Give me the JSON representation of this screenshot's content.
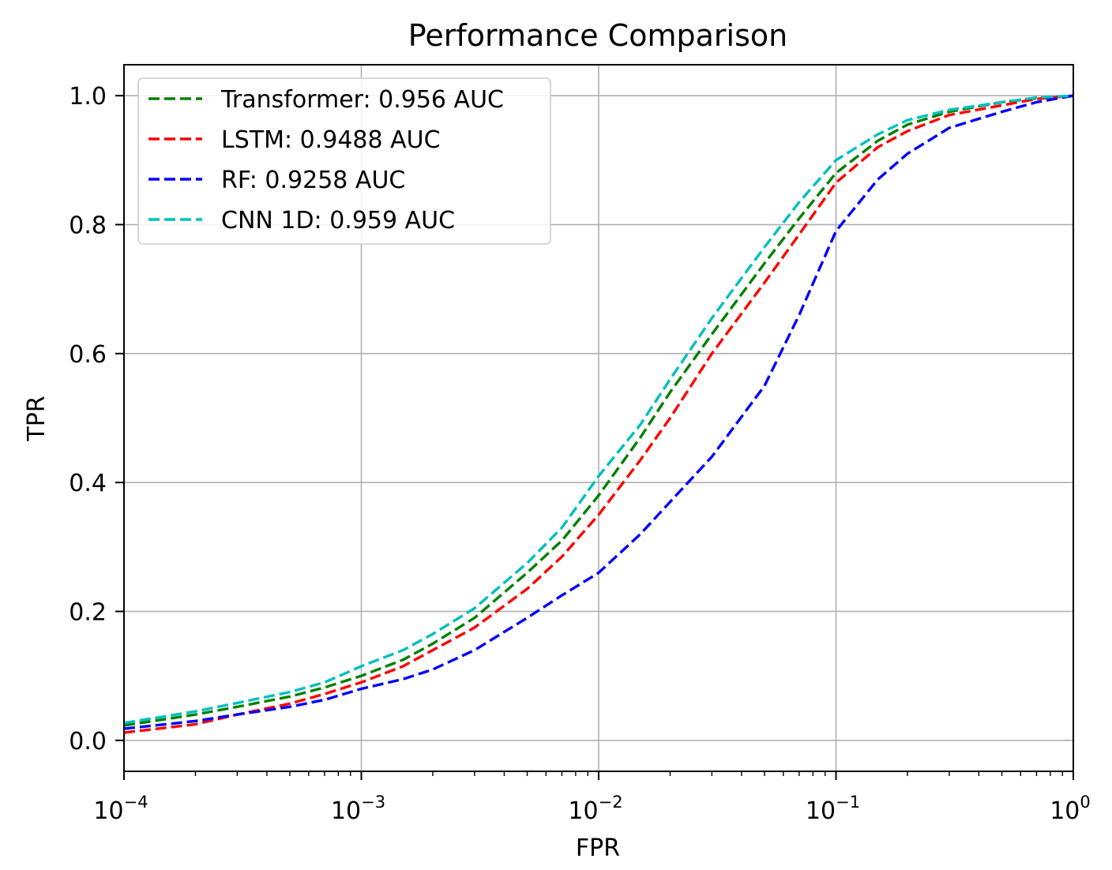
{
  "chart_data": {
    "type": "line",
    "title": "Performance Comparison",
    "xlabel": "FPR",
    "ylabel": "TPR",
    "xscale": "log",
    "xlim": [
      0.0001,
      1
    ],
    "ylim": [
      -0.048,
      1.048
    ],
    "grid": true,
    "legend_position": "top-left",
    "x_ticks": [
      {
        "value": 0.0001,
        "base": "10",
        "exp": "−4"
      },
      {
        "value": 0.001,
        "base": "10",
        "exp": "−3"
      },
      {
        "value": 0.01,
        "base": "10",
        "exp": "−2"
      },
      {
        "value": 0.1,
        "base": "10",
        "exp": "−1"
      },
      {
        "value": 1,
        "base": "10",
        "exp": "0"
      }
    ],
    "y_ticks": [
      {
        "value": 0.0,
        "label": "0.0"
      },
      {
        "value": 0.2,
        "label": "0.2"
      },
      {
        "value": 0.4,
        "label": "0.4"
      },
      {
        "value": 0.6,
        "label": "0.6"
      },
      {
        "value": 0.8,
        "label": "0.8"
      },
      {
        "value": 1.0,
        "label": "1.0"
      }
    ],
    "series": [
      {
        "name": "Transformer: 0.956 AUC",
        "color": "#008000",
        "x": [
          0.0001,
          0.0002,
          0.0003,
          0.0005,
          0.0007,
          0.001,
          0.0015,
          0.002,
          0.003,
          0.005,
          0.007,
          0.01,
          0.015,
          0.02,
          0.03,
          0.05,
          0.07,
          0.1,
          0.15,
          0.2,
          0.3,
          0.5,
          0.7,
          1.0
        ],
        "y": [
          0.023,
          0.04,
          0.052,
          0.068,
          0.082,
          0.1,
          0.125,
          0.15,
          0.19,
          0.26,
          0.31,
          0.38,
          0.47,
          0.54,
          0.63,
          0.74,
          0.81,
          0.88,
          0.93,
          0.955,
          0.975,
          0.99,
          0.996,
          1.0
        ]
      },
      {
        "name": "LSTM: 0.9488 AUC",
        "color": "#ff0000",
        "x": [
          0.0001,
          0.0002,
          0.0003,
          0.0005,
          0.0007,
          0.001,
          0.0015,
          0.002,
          0.003,
          0.005,
          0.007,
          0.01,
          0.015,
          0.02,
          0.03,
          0.05,
          0.07,
          0.1,
          0.15,
          0.2,
          0.3,
          0.5,
          0.7,
          1.0
        ],
        "y": [
          0.012,
          0.025,
          0.04,
          0.057,
          0.072,
          0.09,
          0.115,
          0.14,
          0.175,
          0.235,
          0.285,
          0.35,
          0.435,
          0.5,
          0.6,
          0.71,
          0.785,
          0.865,
          0.92,
          0.945,
          0.97,
          0.985,
          0.995,
          1.0
        ]
      },
      {
        "name": "RF: 0.9258 AUC",
        "color": "#0000ff",
        "x": [
          0.0001,
          0.0002,
          0.0003,
          0.0005,
          0.0007,
          0.001,
          0.0015,
          0.002,
          0.003,
          0.005,
          0.007,
          0.01,
          0.015,
          0.02,
          0.03,
          0.05,
          0.07,
          0.1,
          0.15,
          0.2,
          0.3,
          0.5,
          0.7,
          1.0
        ],
        "y": [
          0.018,
          0.03,
          0.04,
          0.052,
          0.063,
          0.08,
          0.095,
          0.11,
          0.14,
          0.19,
          0.225,
          0.26,
          0.32,
          0.37,
          0.44,
          0.55,
          0.66,
          0.79,
          0.87,
          0.91,
          0.95,
          0.975,
          0.99,
          1.0
        ]
      },
      {
        "name": "CNN 1D: 0.959 AUC",
        "color": "#00bfbf",
        "x": [
          0.0001,
          0.0002,
          0.0003,
          0.0005,
          0.0007,
          0.001,
          0.0015,
          0.002,
          0.003,
          0.005,
          0.007,
          0.01,
          0.015,
          0.02,
          0.03,
          0.05,
          0.07,
          0.1,
          0.15,
          0.2,
          0.3,
          0.5,
          0.7,
          1.0
        ],
        "y": [
          0.027,
          0.045,
          0.058,
          0.075,
          0.09,
          0.115,
          0.14,
          0.165,
          0.205,
          0.275,
          0.33,
          0.41,
          0.49,
          0.56,
          0.655,
          0.765,
          0.835,
          0.9,
          0.94,
          0.962,
          0.978,
          0.99,
          0.997,
          1.0
        ]
      }
    ]
  }
}
